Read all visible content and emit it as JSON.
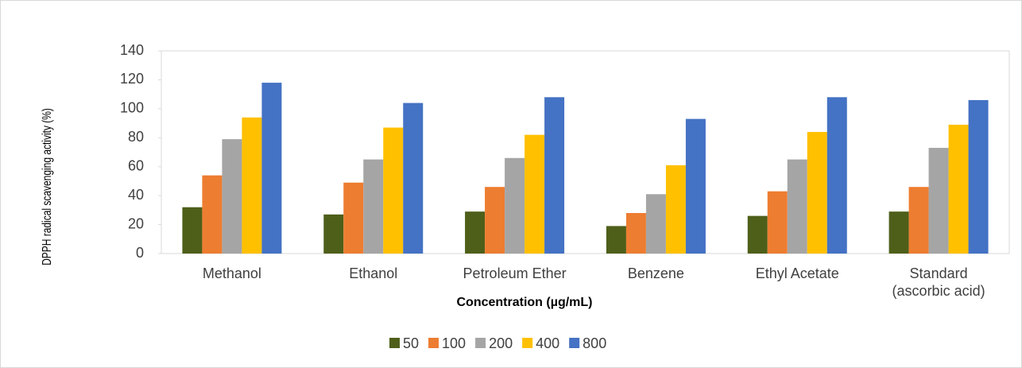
{
  "chart_data": {
    "type": "bar",
    "y_label": "DPPH radical scavenging activity (%)",
    "x_label": "Concentration (µg/mL)",
    "categories": [
      "Methanol",
      "Ethanol",
      "Petroleum Ether",
      "Benzene",
      "Ethyl Acetate",
      "Standard\n(ascorbic acid)"
    ],
    "series": [
      {
        "name": "50",
        "color": "#4e5f1a",
        "values": [
          32,
          27,
          29,
          19,
          26,
          29
        ]
      },
      {
        "name": "100",
        "color": "#ed7d31",
        "values": [
          54,
          49,
          46,
          28,
          43,
          46
        ]
      },
      {
        "name": "200",
        "color": "#a5a5a5",
        "values": [
          79,
          65,
          66,
          41,
          65,
          73
        ]
      },
      {
        "name": "400",
        "color": "#ffc000",
        "values": [
          94,
          87,
          82,
          61,
          84,
          89
        ]
      },
      {
        "name": "800",
        "color": "#4472c4",
        "values": [
          118,
          104,
          108,
          93,
          108,
          106
        ]
      }
    ],
    "ylim": [
      0,
      140
    ],
    "yticks": [
      0,
      20,
      40,
      60,
      80,
      100,
      120,
      140
    ],
    "legend": "bottom"
  }
}
